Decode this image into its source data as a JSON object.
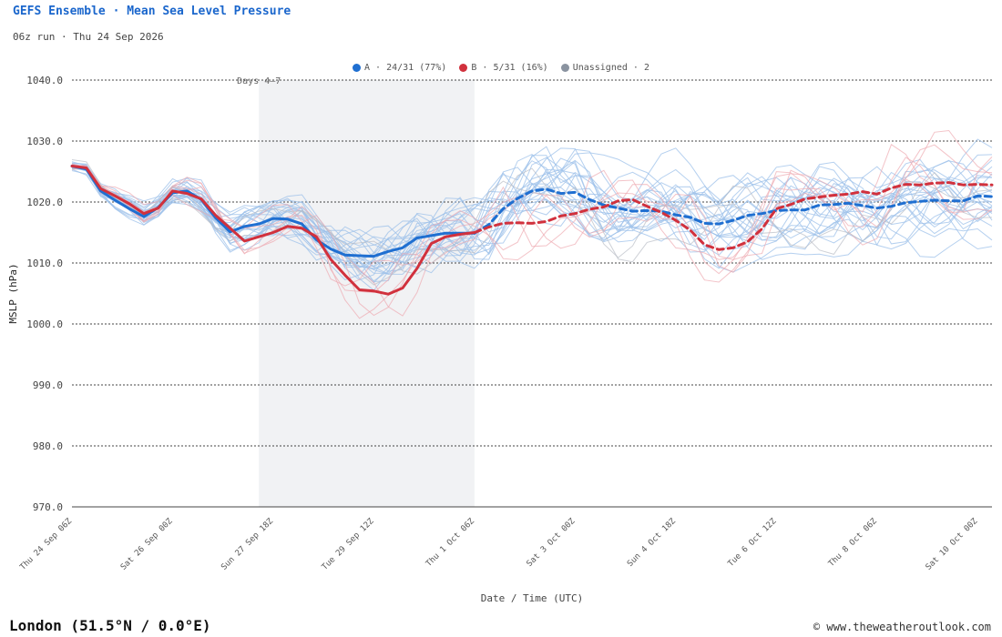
{
  "header": {
    "title": "GEFS Ensemble · Mean Sea Level Pressure",
    "subtitle": "06z run · Thu 24 Sep 2026"
  },
  "legend": [
    {
      "label": "A · 24/31 (77%)",
      "color": "#1f6fd1"
    },
    {
      "label": "B · 5/31 (16%)",
      "color": "#d1313d"
    },
    {
      "label": "Unassigned · 2",
      "color": "#8a93a0"
    }
  ],
  "footer": {
    "location": "London (51.5°N / 0.0°E)",
    "credit": "© www.theweatheroutlook.com"
  },
  "chart_data": {
    "type": "line",
    "ylabel": "MSLP (hPa)",
    "xlabel": "Date / Time (UTC)",
    "ylim": [
      970,
      1040
    ],
    "yticks": [
      970,
      980,
      990,
      1000,
      1010,
      1020,
      1030,
      1040
    ],
    "ytick_labels": [
      "970.0",
      "980.0",
      "990.0",
      "1000.0",
      "1010.0",
      "1020.0",
      "1030.0",
      "1040.0"
    ],
    "x_unit": "hours from Thu 24 Sep 06Z",
    "xlim": [
      0,
      384
    ],
    "xticks": [
      0,
      42,
      84,
      126,
      168,
      210,
      252,
      294,
      336,
      378
    ],
    "xtick_labels": [
      "Thu 24 Sep 06Z",
      "Sat 26 Sep 00Z",
      "Sun 27 Sep 18Z",
      "Tue 29 Sep 12Z",
      "Thu 1 Oct 06Z",
      "Sat 3 Oct 00Z",
      "Sun 4 Oct 18Z",
      "Tue 6 Oct 12Z",
      "Thu 8 Oct 06Z",
      "Sat 10 Oct 00Z"
    ],
    "grid": "horizontal dashed",
    "legend_position": "top-center",
    "highlight": {
      "label": "Days 4–7",
      "x_range": [
        78,
        168
      ]
    },
    "series": [
      {
        "name": "A · 24/31 (77%)",
        "color": "#1f6fd1",
        "style": "solid",
        "x": [
          0,
          6,
          12,
          18,
          24,
          30,
          36,
          42,
          48,
          54,
          60,
          66,
          72,
          78,
          84,
          90,
          96,
          102,
          108,
          114,
          120,
          126,
          132,
          138,
          144,
          150,
          156,
          162,
          168
        ],
        "y": [
          1025.9,
          1025.4,
          1021.8,
          1020.3,
          1018.9,
          1017.6,
          1019.1,
          1021.5,
          1021.8,
          1020.4,
          1017.4,
          1015.1,
          1016.0,
          1016.4,
          1017.3,
          1017.2,
          1016.4,
          1013.8,
          1012.3,
          1011.3,
          1011.2,
          1011.1,
          1011.9,
          1012.5,
          1014.1,
          1014.5,
          1014.9,
          1014.9,
          1014.9
        ]
      },
      {
        "name": "A · 24/31 (77%)",
        "color": "#1f6fd1",
        "style": "dashed",
        "x": [
          168,
          174,
          180,
          186,
          192,
          198,
          204,
          210,
          216,
          222,
          228,
          234,
          240,
          246,
          252,
          258,
          264,
          270,
          276,
          282,
          288,
          294,
          300,
          306,
          312,
          318,
          324,
          330,
          336,
          342,
          348,
          354,
          360,
          366,
          372,
          378,
          384
        ],
        "y": [
          1014.9,
          1016.3,
          1018.9,
          1020.6,
          1021.8,
          1022.1,
          1021.4,
          1021.6,
          1020.4,
          1019.5,
          1019.0,
          1018.5,
          1018.6,
          1018.5,
          1017.9,
          1017.5,
          1016.5,
          1016.4,
          1017.0,
          1017.8,
          1018.1,
          1018.6,
          1018.7,
          1018.7,
          1019.5,
          1019.6,
          1019.8,
          1019.4,
          1019.0,
          1019.3,
          1019.9,
          1020.1,
          1020.3,
          1020.2,
          1020.2,
          1021.0,
          1020.9
        ]
      },
      {
        "name": "B · 5/31 (16%)",
        "color": "#d1313d",
        "style": "solid",
        "x": [
          0,
          6,
          12,
          18,
          24,
          30,
          36,
          42,
          48,
          54,
          60,
          66,
          72,
          78,
          84,
          90,
          96,
          102,
          108,
          114,
          120,
          126,
          132,
          138,
          144,
          150,
          156,
          162,
          168
        ],
        "y": [
          1025.9,
          1025.6,
          1022.2,
          1021.0,
          1019.7,
          1018.1,
          1019.0,
          1021.8,
          1021.4,
          1020.5,
          1017.8,
          1015.7,
          1013.6,
          1014.3,
          1015.0,
          1016.0,
          1015.7,
          1014.3,
          1010.6,
          1008.0,
          1005.6,
          1005.4,
          1004.9,
          1005.9,
          1009.1,
          1013.2,
          1014.3,
          1014.7,
          1015.0
        ]
      },
      {
        "name": "B · 5/31 (16%)",
        "color": "#d1313d",
        "style": "dashed",
        "x": [
          168,
          174,
          180,
          186,
          192,
          198,
          204,
          210,
          216,
          222,
          228,
          234,
          240,
          246,
          252,
          258,
          264,
          270,
          276,
          282,
          288,
          294,
          300,
          306,
          312,
          318,
          324,
          330,
          336,
          342,
          348,
          354,
          360,
          366,
          372,
          378,
          384
        ],
        "y": [
          1015.0,
          1015.9,
          1016.5,
          1016.6,
          1016.5,
          1016.8,
          1017.7,
          1018.1,
          1018.8,
          1019.2,
          1020.2,
          1020.4,
          1019.3,
          1018.3,
          1017.0,
          1015.4,
          1013.0,
          1012.2,
          1012.5,
          1013.5,
          1015.6,
          1018.9,
          1019.6,
          1020.5,
          1020.8,
          1021.1,
          1021.3,
          1021.7,
          1021.3,
          1022.3,
          1022.9,
          1022.8,
          1023.1,
          1023.2,
          1022.8,
          1022.9,
          1022.8
        ]
      }
    ],
    "members": {
      "color_A": "#9cc0ea",
      "color_B": "#eeaab0",
      "color_unassigned": "#b9bec6",
      "count_A": 24,
      "count_B": 5,
      "count_unassigned": 2
    }
  }
}
